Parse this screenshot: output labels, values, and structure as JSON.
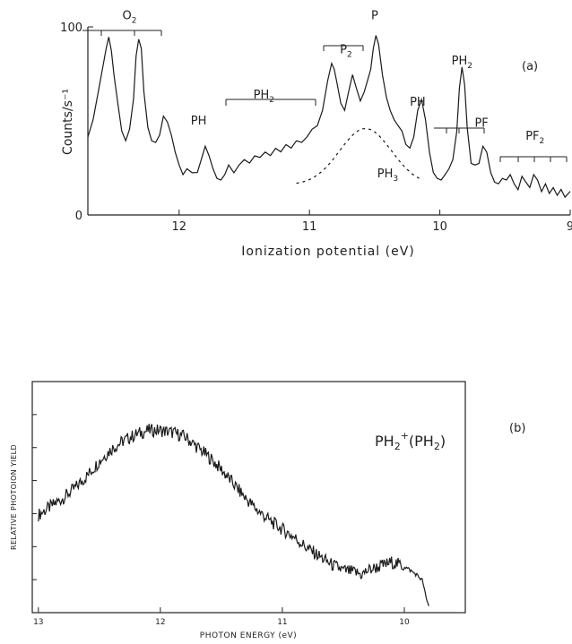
{
  "chart_data": [
    {
      "type": "line",
      "panel_tag": "(a)",
      "xlabel": "Ionization potential (eV)",
      "ylabel": "Counts/s⁻¹",
      "xlim": [
        12.7,
        9.0
      ],
      "ylim": [
        0,
        100
      ],
      "x_reversed": true,
      "x_ticks": [
        12,
        11,
        10,
        9
      ],
      "x_tick_labels": [
        "12",
        "11",
        "10",
        "9"
      ],
      "y_ticks": [
        0,
        100
      ],
      "y_tick_labels": [
        "0",
        "100"
      ],
      "series": [
        {
          "x": [
            12.7,
            12.66,
            12.62,
            12.58,
            12.56,
            12.54,
            12.52,
            12.5,
            12.47,
            12.44,
            12.41,
            12.38,
            12.35,
            12.33,
            12.31,
            12.29,
            12.27,
            12.24,
            12.21,
            12.18,
            12.15,
            12.12,
            12.09,
            12.06,
            12.03,
            12.0,
            11.97,
            11.94,
            11.9,
            11.86,
            11.83,
            11.8,
            11.77,
            11.74,
            11.71,
            11.68,
            11.65,
            11.62,
            11.58,
            11.54,
            11.5,
            11.46,
            11.42,
            11.38,
            11.34,
            11.3,
            11.26,
            11.22,
            11.18,
            11.14,
            11.1,
            11.06,
            11.02,
            10.98,
            10.94,
            10.9,
            10.86,
            10.83,
            10.81,
            10.79,
            10.76,
            10.73,
            10.7,
            10.67,
            10.64,
            10.61,
            10.58,
            10.55,
            10.53,
            10.51,
            10.49,
            10.47,
            10.44,
            10.41,
            10.38,
            10.35,
            10.32,
            10.29,
            10.26,
            10.23,
            10.2,
            10.17,
            10.14,
            10.11,
            10.08,
            10.05,
            10.02,
            9.99,
            9.96,
            9.93,
            9.9,
            9.87,
            9.85,
            9.83,
            9.81,
            9.79,
            9.76,
            9.73,
            9.7,
            9.67,
            9.64,
            9.61,
            9.58,
            9.55,
            9.52,
            9.49,
            9.46,
            9.43,
            9.4,
            9.37,
            9.34,
            9.31,
            9.28,
            9.25,
            9.22,
            9.19,
            9.16,
            9.13,
            9.1,
            9.07,
            9.04,
            9.0
          ],
          "y": [
            42,
            50,
            66,
            80,
            89,
            94,
            88,
            74,
            60,
            44,
            40,
            45,
            62,
            84,
            94,
            88,
            66,
            46,
            40,
            38,
            43,
            52,
            50,
            42,
            34,
            26,
            22,
            24,
            23,
            22,
            30,
            36,
            32,
            24,
            20,
            18,
            22,
            26,
            23,
            26,
            30,
            27,
            32,
            30,
            34,
            31,
            36,
            33,
            38,
            35,
            40,
            38,
            42,
            45,
            48,
            55,
            72,
            80,
            78,
            70,
            60,
            55,
            66,
            74,
            68,
            60,
            66,
            72,
            78,
            88,
            96,
            90,
            75,
            62,
            56,
            50,
            48,
            44,
            38,
            35,
            42,
            55,
            62,
            50,
            34,
            22,
            20,
            18,
            22,
            24,
            30,
            44,
            68,
            78,
            70,
            46,
            28,
            26,
            28,
            36,
            34,
            22,
            18,
            16,
            20,
            18,
            22,
            16,
            14,
            20,
            18,
            14,
            22,
            18,
            13,
            16,
            12,
            14,
            11,
            13,
            10,
            12
          ]
        }
      ],
      "annotations": [
        {
          "text": "O",
          "sub": "2",
          "x": 12.38,
          "y": 104
        },
        {
          "text": "PH",
          "sub": "",
          "x": 11.85,
          "y": 48
        },
        {
          "text": "PH",
          "sub": "2",
          "x": 11.35,
          "y": 62
        },
        {
          "text": "P",
          "sub": "2",
          "x": 10.72,
          "y": 86
        },
        {
          "text": "P",
          "sub": "",
          "x": 10.5,
          "y": 104
        },
        {
          "text": "PH",
          "sub": "",
          "x": 10.17,
          "y": 58
        },
        {
          "text": "PH",
          "sub": "2",
          "x": 9.83,
          "y": 80
        },
        {
          "text": "PF",
          "sub": "",
          "x": 9.68,
          "y": 47
        },
        {
          "text": "PF",
          "sub": "2",
          "x": 9.27,
          "y": 40
        },
        {
          "text": "PH",
          "sub": "3",
          "x": 10.4,
          "y": 20
        }
      ]
    },
    {
      "type": "line",
      "panel_tag": "(b)",
      "xlabel": "PHOTON ENERGY (eV)",
      "ylabel": "RELATIVE PHOTOION YIELD",
      "xlim": [
        13.05,
        9.5
      ],
      "ylim": [
        0,
        100
      ],
      "x_reversed": true,
      "x_ticks": [
        13,
        12,
        11,
        10
      ],
      "x_tick_labels": [
        "13",
        "12",
        "11",
        "10"
      ],
      "series": [
        {
          "name": "PH2+(PH2)",
          "x": [
            13.0,
            12.9,
            12.8,
            12.7,
            12.6,
            12.5,
            12.4,
            12.3,
            12.2,
            12.1,
            12.0,
            11.9,
            11.8,
            11.7,
            11.6,
            11.5,
            11.4,
            11.3,
            11.2,
            11.1,
            11.0,
            10.9,
            10.8,
            10.7,
            10.6,
            10.5,
            10.4,
            10.35,
            10.3,
            10.2,
            10.1,
            10.0,
            9.9,
            9.85,
            9.82,
            9.8
          ],
          "y": [
            44,
            48,
            52,
            57,
            63,
            70,
            76,
            80,
            83,
            85,
            85,
            84,
            82,
            77,
            72,
            66,
            59,
            52,
            46,
            41,
            37,
            33,
            28,
            24,
            20,
            17,
            16,
            15,
            17,
            19,
            21,
            19,
            15,
            12,
            3,
            0
          ]
        }
      ],
      "legend_text": "PH",
      "legend_sup": "+",
      "legend_sub": "2",
      "legend_tail_main": "(PH",
      "legend_tail_sub": "2",
      "legend_tail_end": ")"
    }
  ]
}
